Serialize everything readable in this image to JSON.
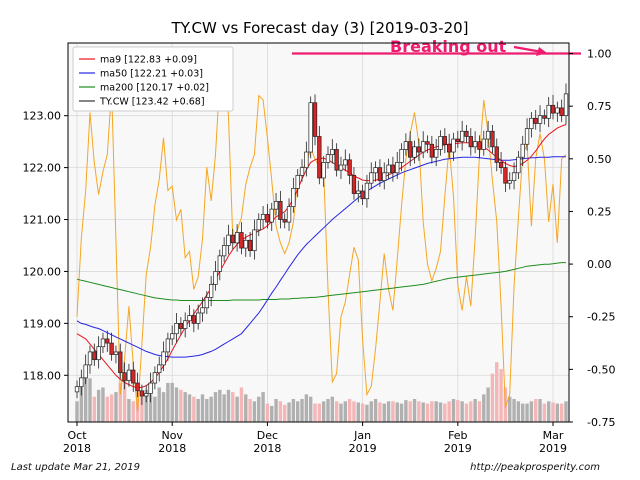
{
  "chart_data": {
    "type": "candlestick",
    "title": "TY.CW vs Forecast day (3)  [2019-03-20]",
    "left_axis": {
      "ylim": [
        117.1,
        124.4
      ],
      "ticks": [
        118.0,
        119.0,
        120.0,
        121.0,
        122.0,
        123.0
      ],
      "tick_labels": [
        "118.00",
        "119.00",
        "120.00",
        "121.00",
        "122.00",
        "123.00"
      ]
    },
    "right_axis": {
      "ylim": [
        -0.75,
        1.05
      ],
      "ticks": [
        -0.75,
        -0.5,
        -0.25,
        0.0,
        0.25,
        0.5,
        0.75,
        1.0
      ],
      "tick_labels": [
        "-0.75",
        "-0.50",
        "-0.25",
        "0.00",
        "0.25",
        "0.50",
        "0.75",
        "1.00"
      ]
    },
    "x_axis": {
      "ticks": [
        {
          "index": 0,
          "label1": "Oct",
          "label2": "2018"
        },
        {
          "index": 22,
          "label1": "Nov",
          "label2": "2018"
        },
        {
          "index": 44,
          "label1": "Dec",
          "label2": "2018"
        },
        {
          "index": 66,
          "label1": "Jan",
          "label2": "2019"
        },
        {
          "index": 88,
          "label1": "Feb",
          "label2": "2019"
        },
        {
          "index": 110,
          "label1": "Mar",
          "label2": "2019"
        }
      ]
    },
    "grid": true,
    "legend": {
      "position": "top-left",
      "entries": [
        {
          "label": "ma9 [122.83 +0.09]",
          "color": "#e8141c"
        },
        {
          "label": "ma50 [122.21 +0.03]",
          "color": "#2626e6"
        },
        {
          "label": "ma200 [120.17 +0.02]",
          "color": "#1e8c1e"
        },
        {
          "label": "TY.CW [123.42 +0.68]",
          "color": "#333333"
        }
      ]
    },
    "annotation": {
      "text": "Breaking out",
      "color": "#ee1c6e",
      "level": 1.0
    },
    "n_bars": 114,
    "close": [
      117.78,
      117.95,
      118.2,
      118.45,
      118.3,
      118.55,
      118.7,
      118.62,
      118.4,
      118.45,
      118.05,
      117.9,
      118.1,
      117.85,
      117.7,
      117.6,
      117.65,
      117.85,
      118.05,
      118.2,
      118.45,
      118.7,
      118.8,
      119.0,
      118.9,
      119.05,
      119.15,
      119.0,
      119.2,
      119.3,
      119.5,
      119.75,
      120.0,
      120.3,
      120.5,
      120.7,
      120.55,
      120.75,
      120.45,
      120.6,
      120.4,
      120.8,
      121.0,
      121.1,
      120.95,
      121.2,
      121.35,
      121.0,
      120.95,
      121.25,
      121.6,
      121.85,
      122.0,
      122.3,
      123.25,
      122.6,
      121.8,
      122.1,
      122.25,
      122.35,
      121.95,
      122.05,
      122.15,
      121.85,
      121.5,
      121.55,
      121.4,
      121.7,
      121.9,
      122.0,
      121.75,
      121.9,
      122.05,
      121.9,
      122.1,
      122.35,
      122.5,
      122.2,
      122.4,
      122.3,
      122.5,
      122.45,
      122.2,
      122.35,
      122.6,
      122.45,
      122.3,
      122.55,
      122.5,
      122.7,
      122.6,
      122.4,
      122.5,
      122.35,
      122.55,
      122.7,
      122.4,
      122.1,
      122.0,
      121.7,
      121.75,
      121.9,
      122.2,
      122.45,
      122.75,
      122.95,
      122.85,
      123.0,
      122.95,
      123.2,
      123.05,
      123.15,
      123.0,
      123.42
    ],
    "ma9": [
      118.8,
      118.75,
      118.7,
      118.6,
      118.5,
      118.4,
      118.3,
      118.2,
      118.1,
      118.0,
      117.92,
      117.86,
      117.82,
      117.78,
      117.76,
      117.77,
      117.8,
      117.86,
      117.95,
      118.05,
      118.18,
      118.32,
      118.48,
      118.63,
      118.78,
      118.92,
      119.06,
      119.18,
      119.3,
      119.42,
      119.55,
      119.68,
      119.85,
      120.0,
      120.15,
      120.3,
      120.42,
      120.52,
      120.6,
      120.66,
      120.7,
      120.74,
      120.78,
      120.82,
      120.88,
      120.96,
      121.05,
      121.1,
      121.15,
      121.25,
      121.4,
      121.58,
      121.78,
      121.96,
      122.1,
      122.15,
      122.18,
      122.18,
      122.15,
      122.1,
      122.05,
      122.0,
      121.95,
      121.9,
      121.84,
      121.8,
      121.76,
      121.75,
      121.75,
      121.76,
      121.78,
      121.82,
      121.86,
      121.9,
      121.95,
      122.0,
      122.06,
      122.12,
      122.18,
      122.24,
      122.3,
      122.34,
      122.37,
      122.4,
      122.42,
      122.44,
      122.45,
      122.46,
      122.47,
      122.48,
      122.48,
      122.48,
      122.47,
      122.44,
      122.4,
      122.34,
      122.27,
      122.2,
      122.14,
      122.08,
      122.04,
      122.02,
      122.04,
      122.08,
      122.14,
      122.22,
      122.32,
      122.44,
      122.55,
      122.64,
      122.7,
      122.76,
      122.8,
      122.83
    ],
    "ma50": [
      119.05,
      119.0,
      118.98,
      118.95,
      118.92,
      118.9,
      118.86,
      118.82,
      118.78,
      118.74,
      118.7,
      118.66,
      118.62,
      118.58,
      118.54,
      118.5,
      118.46,
      118.43,
      118.4,
      118.38,
      118.37,
      118.36,
      118.35,
      118.35,
      118.35,
      118.35,
      118.36,
      118.37,
      118.38,
      118.4,
      118.43,
      118.46,
      118.5,
      118.55,
      118.6,
      118.65,
      118.7,
      118.75,
      118.8,
      118.9,
      119.0,
      119.1,
      119.2,
      119.32,
      119.45,
      119.58,
      119.7,
      119.83,
      119.95,
      120.08,
      120.2,
      120.32,
      120.42,
      120.52,
      120.6,
      120.68,
      120.76,
      120.84,
      120.92,
      121.0,
      121.07,
      121.14,
      121.21,
      121.28,
      121.35,
      121.42,
      121.49,
      121.55,
      121.6,
      121.65,
      121.7,
      121.74,
      121.78,
      121.82,
      121.86,
      121.9,
      121.93,
      121.96,
      121.99,
      122.02,
      122.05,
      122.08,
      122.1,
      122.12,
      122.14,
      122.16,
      122.17,
      122.18,
      122.19,
      122.2,
      122.2,
      122.2,
      122.2,
      122.19,
      122.18,
      122.17,
      122.16,
      122.15,
      122.14,
      122.14,
      122.14,
      122.15,
      122.16,
      122.17,
      122.18,
      122.19,
      122.19,
      122.2,
      122.2,
      122.2,
      122.21,
      122.21,
      122.21,
      122.21
    ],
    "ma200": [
      119.85,
      119.83,
      119.81,
      119.79,
      119.77,
      119.75,
      119.73,
      119.71,
      119.69,
      119.67,
      119.65,
      119.63,
      119.61,
      119.59,
      119.57,
      119.55,
      119.53,
      119.51,
      119.49,
      119.48,
      119.47,
      119.46,
      119.45,
      119.45,
      119.44,
      119.44,
      119.44,
      119.44,
      119.44,
      119.44,
      119.44,
      119.44,
      119.44,
      119.44,
      119.44,
      119.44,
      119.45,
      119.45,
      119.45,
      119.45,
      119.45,
      119.45,
      119.45,
      119.46,
      119.46,
      119.46,
      119.46,
      119.47,
      119.47,
      119.47,
      119.48,
      119.48,
      119.49,
      119.49,
      119.5,
      119.5,
      119.51,
      119.52,
      119.53,
      119.54,
      119.55,
      119.56,
      119.57,
      119.58,
      119.59,
      119.6,
      119.61,
      119.62,
      119.63,
      119.64,
      119.65,
      119.66,
      119.67,
      119.68,
      119.69,
      119.7,
      119.71,
      119.72,
      119.73,
      119.74,
      119.75,
      119.77,
      119.79,
      119.81,
      119.83,
      119.85,
      119.87,
      119.88,
      119.89,
      119.9,
      119.91,
      119.92,
      119.93,
      119.94,
      119.95,
      119.96,
      119.97,
      119.98,
      119.99,
      120.0,
      120.02,
      120.04,
      120.06,
      120.08,
      120.1,
      120.11,
      120.12,
      120.13,
      120.14,
      120.14,
      120.15,
      120.16,
      120.17,
      120.17
    ],
    "forecast": [
      -0.25,
      0.12,
      0.35,
      0.72,
      0.48,
      0.33,
      0.44,
      0.52,
      0.83,
      0.12,
      -0.62,
      -0.45,
      -0.2,
      -0.48,
      -0.7,
      -0.38,
      -0.05,
      0.08,
      0.28,
      0.4,
      0.6,
      0.35,
      0.37,
      0.21,
      0.26,
      0.03,
      0.06,
      -0.12,
      -0.06,
      0.12,
      0.46,
      0.3,
      0.52,
      0.88,
      1.0,
      0.7,
      0.12,
      0.16,
      0.22,
      0.38,
      0.46,
      0.52,
      0.8,
      0.78,
      0.6,
      0.4,
      0.18,
      0.1,
      0.05,
      0.1,
      0.2,
      0.4,
      0.45,
      0.48,
      0.55,
      0.5,
      0.46,
      0.44,
      -0.12,
      -0.56,
      -0.52,
      -0.25,
      -0.18,
      -0.05,
      0.08,
      0.02,
      -0.36,
      -0.62,
      -0.58,
      -0.4,
      -0.18,
      0.05,
      -0.12,
      -0.22,
      0.02,
      0.28,
      0.5,
      0.62,
      0.72,
      0.57,
      0.2,
      0.0,
      -0.08,
      -0.02,
      0.06,
      0.32,
      0.56,
      0.32,
      -0.1,
      -0.22,
      -0.06,
      -0.2,
      0.12,
      0.52,
      0.78,
      0.62,
      0.4,
      0.2,
      -0.2,
      -0.68,
      -0.62,
      -0.1,
      0.22,
      0.52,
      0.57,
      0.18,
      0.5,
      0.62,
      0.5,
      0.2,
      0.38,
      0.1,
      0.5,
      0.52
    ],
    "volume": [
      0.18,
      0.34,
      0.4,
      0.38,
      0.22,
      0.28,
      0.3,
      0.22,
      0.24,
      0.26,
      0.34,
      0.38,
      0.2,
      0.18,
      0.26,
      0.22,
      0.28,
      0.24,
      0.22,
      0.3,
      0.26,
      0.34,
      0.34,
      0.3,
      0.28,
      0.26,
      0.24,
      0.22,
      0.2,
      0.24,
      0.2,
      0.22,
      0.26,
      0.28,
      0.24,
      0.28,
      0.26,
      0.22,
      0.3,
      0.24,
      0.2,
      0.18,
      0.22,
      0.26,
      0.16,
      0.14,
      0.2,
      0.18,
      0.15,
      0.17,
      0.2,
      0.18,
      0.2,
      0.24,
      0.22,
      0.16,
      0.16,
      0.18,
      0.2,
      0.22,
      0.18,
      0.16,
      0.18,
      0.2,
      0.18,
      0.17,
      0.16,
      0.15,
      0.18,
      0.2,
      0.17,
      0.16,
      0.18,
      0.18,
      0.17,
      0.16,
      0.19,
      0.18,
      0.2,
      0.18,
      0.17,
      0.16,
      0.18,
      0.18,
      0.17,
      0.16,
      0.18,
      0.2,
      0.19,
      0.18,
      0.16,
      0.18,
      0.2,
      0.18,
      0.24,
      0.3,
      0.42,
      0.52,
      0.46,
      0.3,
      0.22,
      0.2,
      0.18,
      0.16,
      0.16,
      0.18,
      0.2,
      0.2,
      0.16,
      0.18,
      0.17,
      0.16,
      0.16,
      0.18
    ]
  },
  "footer": {
    "left": "Last update Mar 21, 2019",
    "right": "http://peakprosperity.com"
  },
  "colors": {
    "up_candle": "#ffffff",
    "down_candle": "#d62728",
    "wick": "#222222",
    "volume_up": "#b0b0b0",
    "volume_down": "#f4b6b6",
    "plot_bg": "#f8f8f8"
  }
}
